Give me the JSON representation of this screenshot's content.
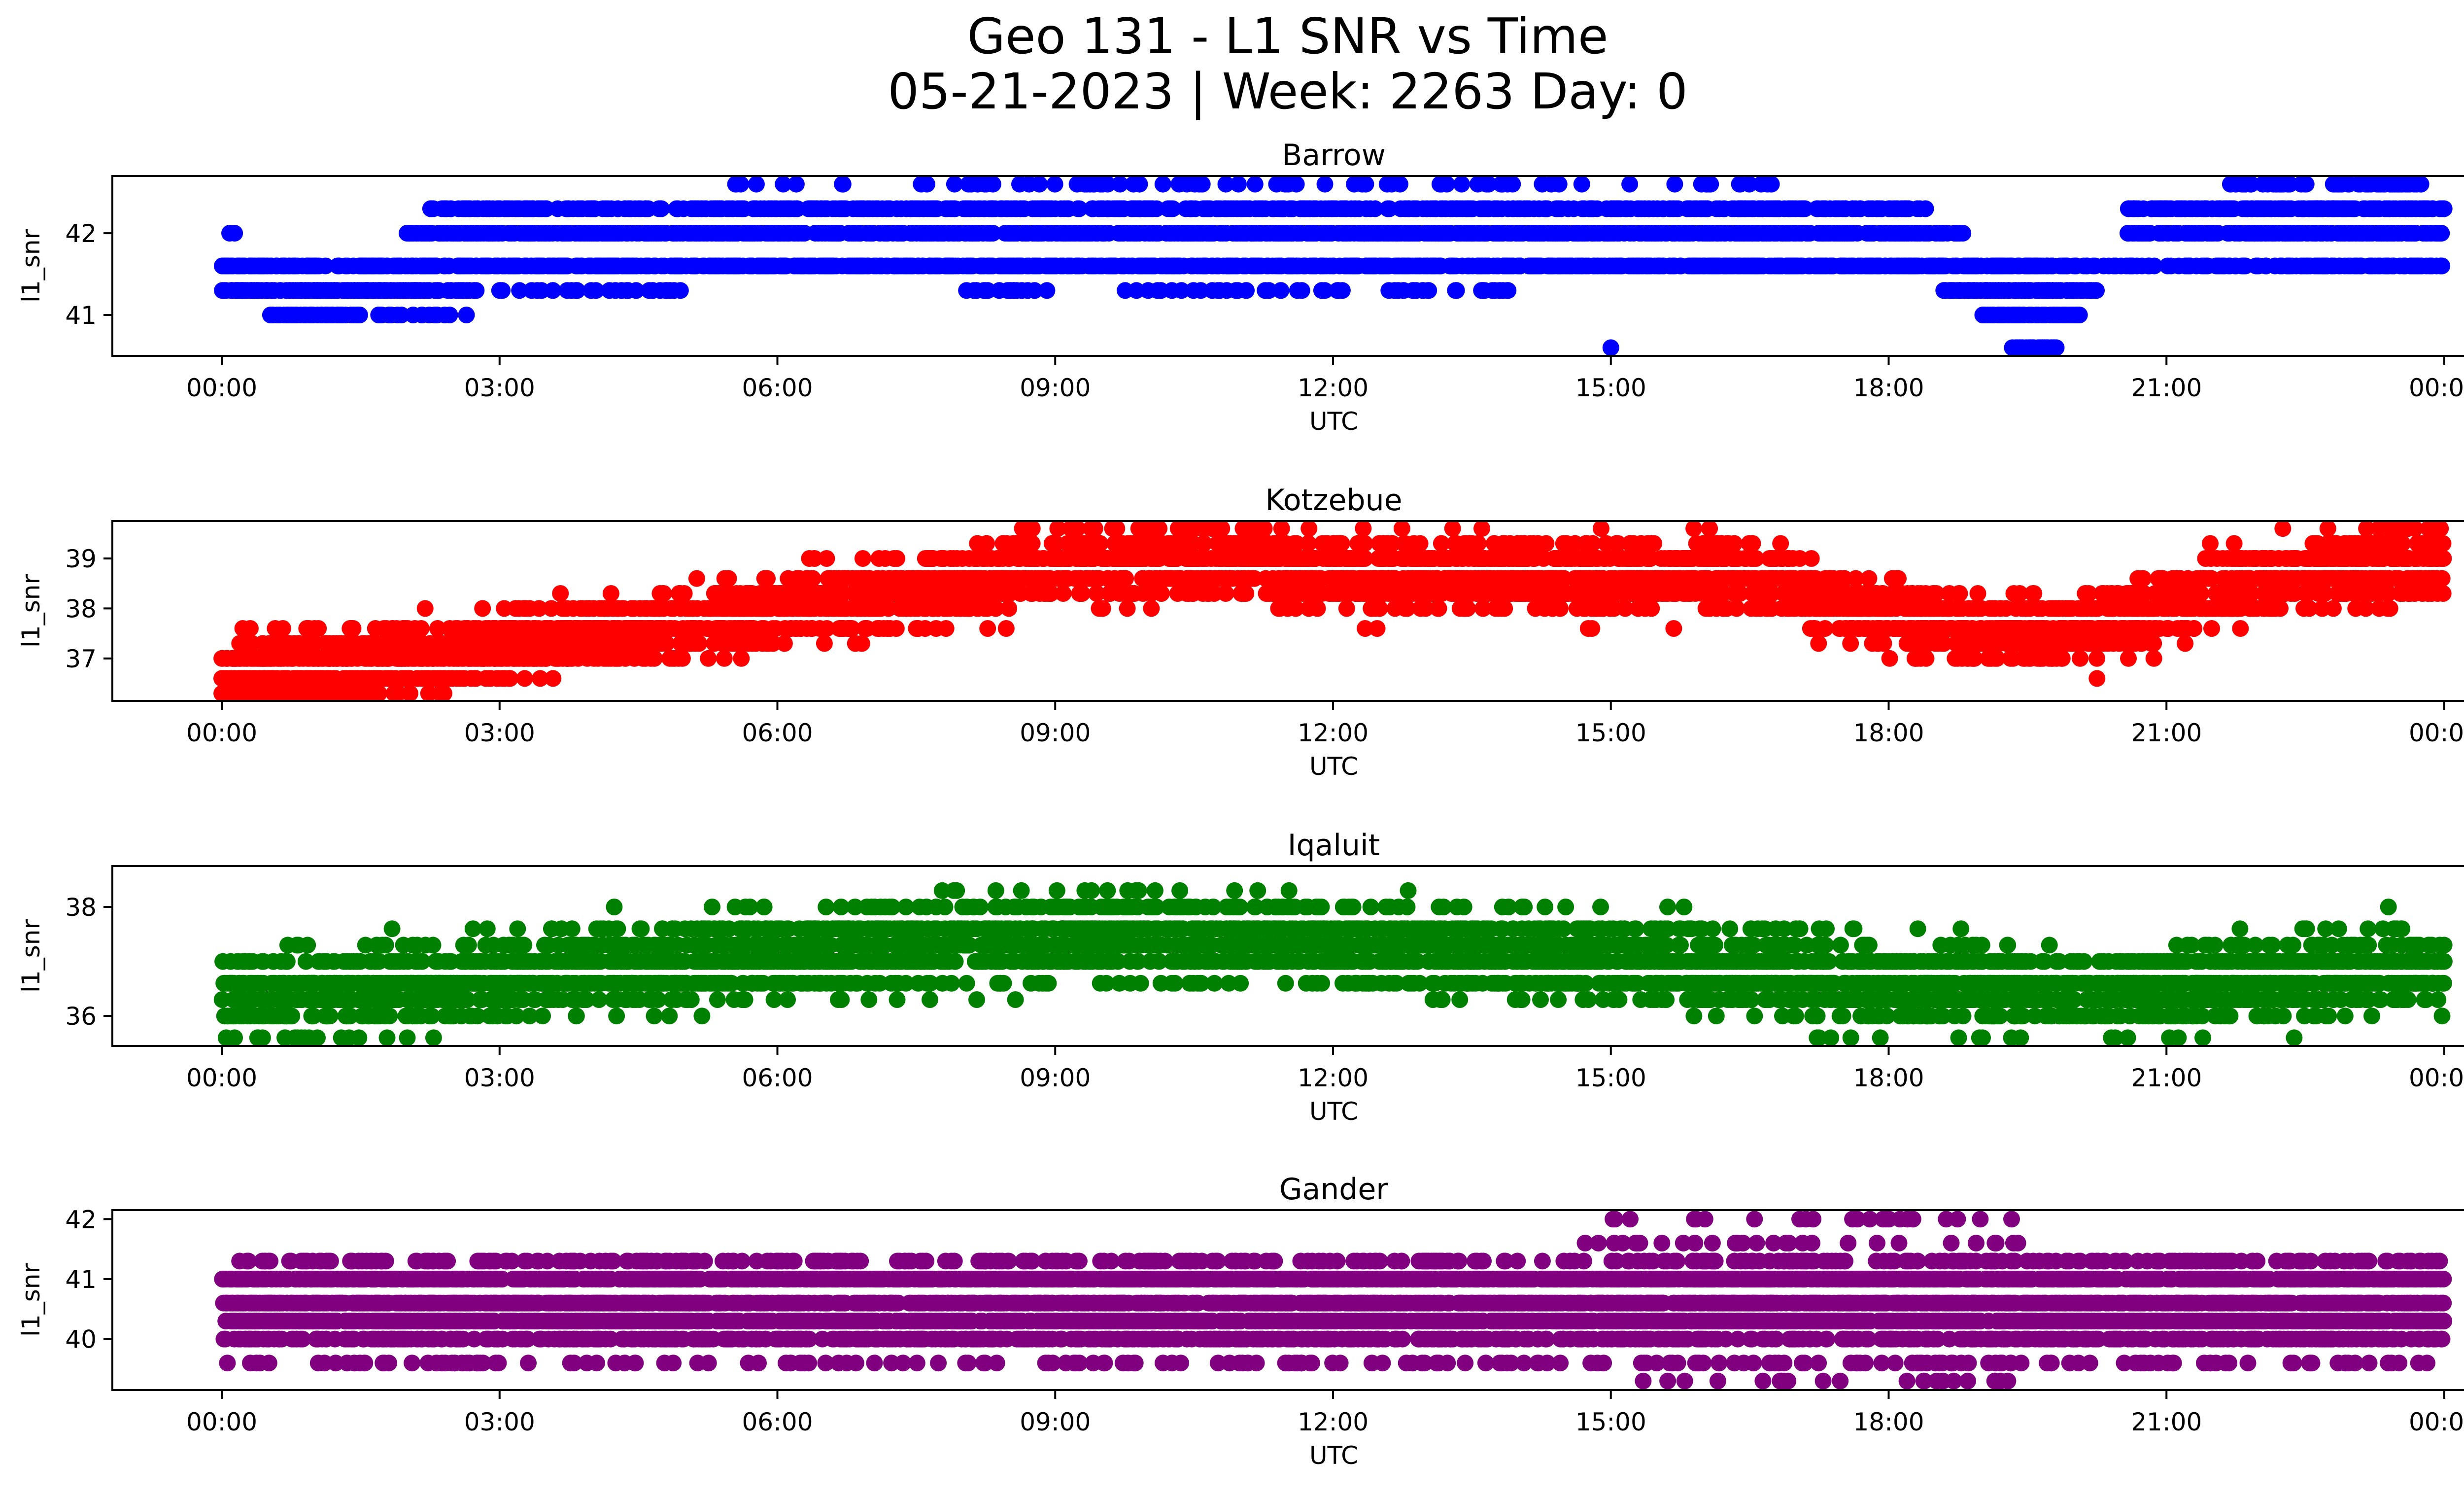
{
  "title": {
    "line1": "Geo 131 - L1 SNR vs Time",
    "line2": "05-21-2023 | Week: 2263 Day: 0"
  },
  "chart_data": [
    {
      "type": "scatter",
      "title": "Barrow",
      "xlabel": "UTC",
      "ylabel": "l1_snr",
      "color": "#0000ff",
      "xlim": [
        "23:00",
        "01:20"
      ],
      "ylim": [
        40.5,
        42.7
      ],
      "xticks": [
        "00:00",
        "03:00",
        "06:00",
        "09:00",
        "12:00",
        "15:00",
        "18:00",
        "21:00",
        "00:00"
      ],
      "yticks": [
        "41",
        "42"
      ],
      "series": [
        {
          "bands": [
            {
              "y": 42.0,
              "from": "02:00",
              "to": "18:50",
              "density": 1.0
            },
            {
              "y": 42.0,
              "from": "20:35",
              "to": "00:00",
              "density": 1.0
            },
            {
              "y": 42.0,
              "from": "00:05",
              "to": "00:10",
              "density": 0.1
            },
            {
              "y": 41.6,
              "from": "00:00",
              "to": "20:00",
              "density": 0.9
            },
            {
              "y": 41.6,
              "from": "20:00",
              "to": "00:00",
              "density": 0.6
            },
            {
              "y": 41.3,
              "from": "00:00",
              "to": "02:45",
              "density": 1.0
            },
            {
              "y": 41.3,
              "from": "03:00",
              "to": "05:00",
              "density": 0.25
            },
            {
              "y": 41.3,
              "from": "08:00",
              "to": "14:00",
              "density": 0.2
            },
            {
              "y": 41.3,
              "from": "18:35",
              "to": "20:15",
              "density": 1.0
            },
            {
              "y": 41.0,
              "from": "00:30",
              "to": "01:30",
              "density": 0.9
            },
            {
              "y": 41.0,
              "from": "01:40",
              "to": "02:40",
              "density": 0.3
            },
            {
              "y": 41.0,
              "from": "19:00",
              "to": "20:05",
              "density": 1.0
            },
            {
              "y": 40.6,
              "from": "19:20",
              "to": "19:50",
              "density": 1.0
            },
            {
              "y": 40.6,
              "from": "15:00",
              "to": "15:00",
              "density": 1.0
            },
            {
              "y": 42.3,
              "from": "02:15",
              "to": "18:25",
              "density": 0.7
            },
            {
              "y": 42.3,
              "from": "20:35",
              "to": "00:00",
              "density": 1.0
            },
            {
              "y": 42.6,
              "from": "05:30",
              "to": "16:45",
              "density": 0.12
            },
            {
              "y": 42.6,
              "from": "21:40",
              "to": "23:45",
              "density": 0.5
            }
          ]
        }
      ]
    },
    {
      "type": "scatter",
      "title": "Kotzebue",
      "xlabel": "UTC",
      "ylabel": "l1_snr",
      "color": "#ff0000",
      "xlim": [
        "23:00",
        "01:20"
      ],
      "ylim": [
        36.15,
        39.75
      ],
      "xticks": [
        "00:00",
        "03:00",
        "06:00",
        "09:00",
        "12:00",
        "15:00",
        "18:00",
        "21:00",
        "00:00"
      ],
      "yticks": [
        "37",
        "38",
        "39"
      ],
      "series": [
        {
          "trend": [
            {
              "t": "00:00",
              "y": 36.65
            },
            {
              "t": "02:00",
              "y": 36.95
            },
            {
              "t": "04:00",
              "y": 37.45
            },
            {
              "t": "06:00",
              "y": 37.95
            },
            {
              "t": "08:00",
              "y": 38.5
            },
            {
              "t": "09:00",
              "y": 38.85
            },
            {
              "t": "11:00",
              "y": 39.0
            },
            {
              "t": "12:00",
              "y": 38.7
            },
            {
              "t": "15:00",
              "y": 38.6
            },
            {
              "t": "16:30",
              "y": 38.75
            },
            {
              "t": "17:30",
              "y": 38.1
            },
            {
              "t": "19:00",
              "y": 37.5
            },
            {
              "t": "20:00",
              "y": 37.6
            },
            {
              "t": "21:00",
              "y": 38.05
            },
            {
              "t": "22:30",
              "y": 38.75
            },
            {
              "t": "00:00",
              "y": 38.95
            }
          ],
          "spread": 0.7,
          "levels": [
            36.3,
            36.6,
            37.0,
            37.3,
            37.6,
            38.0,
            38.3,
            38.6,
            39.0,
            39.3,
            39.6
          ]
        }
      ]
    },
    {
      "type": "scatter",
      "title": "Iqaluit",
      "xlabel": "UTC",
      "ylabel": "l1_snr",
      "color": "#008000",
      "xlim": [
        "23:00",
        "01:20"
      ],
      "ylim": [
        35.45,
        38.75
      ],
      "xticks": [
        "00:00",
        "03:00",
        "06:00",
        "09:00",
        "12:00",
        "15:00",
        "18:00",
        "21:00",
        "00:00"
      ],
      "yticks": [
        "36",
        "38"
      ],
      "series": [
        {
          "trend": [
            {
              "t": "00:00",
              "y": 36.3
            },
            {
              "t": "02:00",
              "y": 36.55
            },
            {
              "t": "04:00",
              "y": 36.85
            },
            {
              "t": "06:00",
              "y": 37.15
            },
            {
              "t": "08:00",
              "y": 37.35
            },
            {
              "t": "10:00",
              "y": 37.45
            },
            {
              "t": "12:00",
              "y": 37.35
            },
            {
              "t": "14:00",
              "y": 37.15
            },
            {
              "t": "16:00",
              "y": 36.9
            },
            {
              "t": "18:00",
              "y": 36.6
            },
            {
              "t": "20:00",
              "y": 36.45
            },
            {
              "t": "22:00",
              "y": 36.7
            },
            {
              "t": "00:00",
              "y": 36.85
            }
          ],
          "spread": 0.75,
          "levels": [
            35.6,
            36.0,
            36.3,
            36.6,
            37.0,
            37.3,
            37.6,
            38.0,
            38.3,
            38.6
          ]
        }
      ]
    },
    {
      "type": "scatter",
      "title": "Gander",
      "xlabel": "UTC",
      "ylabel": "l1_snr",
      "color": "#800080",
      "xlim": [
        "23:00",
        "01:20"
      ],
      "ylim": [
        39.15,
        42.15
      ],
      "xticks": [
        "00:00",
        "03:00",
        "06:00",
        "09:00",
        "12:00",
        "15:00",
        "18:00",
        "21:00",
        "00:00"
      ],
      "yticks": [
        "40",
        "41",
        "42"
      ],
      "series": [
        {
          "bands": [
            {
              "y": 41.0,
              "from": "00:00",
              "to": "00:00",
              "density": 0.95
            },
            {
              "y": 40.6,
              "from": "00:00",
              "to": "00:00",
              "density": 1.0
            },
            {
              "y": 40.3,
              "from": "00:00",
              "to": "00:00",
              "density": 0.95
            },
            {
              "y": 40.0,
              "from": "00:00",
              "to": "00:00",
              "density": 0.55
            },
            {
              "y": 41.3,
              "from": "00:00",
              "to": "00:00",
              "density": 0.3
            },
            {
              "y": 39.6,
              "from": "00:00",
              "to": "00:00",
              "density": 0.15
            },
            {
              "y": 41.6,
              "from": "14:30",
              "to": "19:30",
              "density": 0.1
            },
            {
              "y": 42.0,
              "from": "15:00",
              "to": "19:30",
              "density": 0.08
            },
            {
              "y": 39.3,
              "from": "14:50",
              "to": "19:30",
              "density": 0.08
            }
          ]
        }
      ]
    }
  ]
}
